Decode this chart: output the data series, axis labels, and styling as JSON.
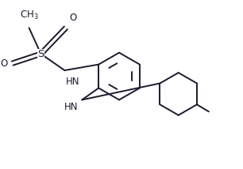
{
  "bg_color": "#ffffff",
  "line_color": "#1a1a2e",
  "lw": 1.4,
  "fs": 8.5,
  "figsize": [
    3.06,
    2.14
  ],
  "dpi": 100,
  "xlim": [
    0,
    10
  ],
  "ylim": [
    0,
    7
  ]
}
